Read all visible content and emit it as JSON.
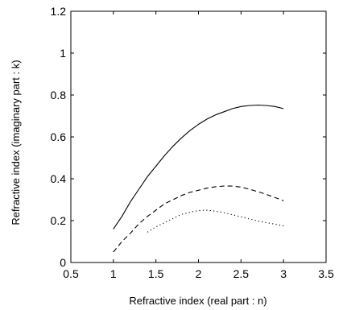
{
  "chart_data": {
    "type": "line",
    "title": "",
    "xlabel": "Refractive index (real part : n)",
    "ylabel": "Refractive index (imaginary part : k)",
    "xlim": [
      0.5,
      3.5
    ],
    "ylim": [
      0,
      1.2
    ],
    "xticks": [
      "0.5",
      "1",
      "1.5",
      "2",
      "2.5",
      "3",
      "3.5"
    ],
    "yticks": [
      "0",
      "0.2",
      "0.4",
      "0.6",
      "0.8",
      "1",
      "1.2"
    ],
    "grid": false,
    "series": [
      {
        "style": "solid",
        "x": [
          1.0,
          1.1,
          1.2,
          1.3,
          1.4,
          1.5,
          1.6,
          1.7,
          1.8,
          1.9,
          2.0,
          2.1,
          2.2,
          2.3,
          2.4,
          2.5,
          2.6,
          2.7,
          2.8,
          2.9,
          3.0
        ],
        "y": [
          0.16,
          0.22,
          0.29,
          0.35,
          0.41,
          0.46,
          0.51,
          0.555,
          0.595,
          0.63,
          0.66,
          0.685,
          0.705,
          0.72,
          0.735,
          0.745,
          0.75,
          0.752,
          0.75,
          0.745,
          0.735
        ]
      },
      {
        "style": "dashed",
        "x": [
          1.0,
          1.1,
          1.2,
          1.3,
          1.4,
          1.5,
          1.6,
          1.7,
          1.8,
          1.9,
          2.0,
          2.1,
          2.2,
          2.3,
          2.4,
          2.5,
          2.6,
          2.7,
          2.8,
          2.9,
          3.0
        ],
        "y": [
          0.05,
          0.1,
          0.14,
          0.185,
          0.22,
          0.25,
          0.28,
          0.3,
          0.32,
          0.335,
          0.345,
          0.355,
          0.362,
          0.365,
          0.365,
          0.36,
          0.35,
          0.338,
          0.325,
          0.31,
          0.295
        ]
      },
      {
        "style": "dotted",
        "x": [
          1.4,
          1.5,
          1.6,
          1.7,
          1.8,
          1.9,
          2.0,
          2.1,
          2.2,
          2.3,
          2.4,
          2.5,
          2.6,
          2.7,
          2.8,
          2.9,
          3.0
        ],
        "y": [
          0.145,
          0.17,
          0.19,
          0.21,
          0.23,
          0.24,
          0.248,
          0.25,
          0.245,
          0.238,
          0.228,
          0.218,
          0.208,
          0.198,
          0.19,
          0.183,
          0.175
        ]
      }
    ]
  }
}
